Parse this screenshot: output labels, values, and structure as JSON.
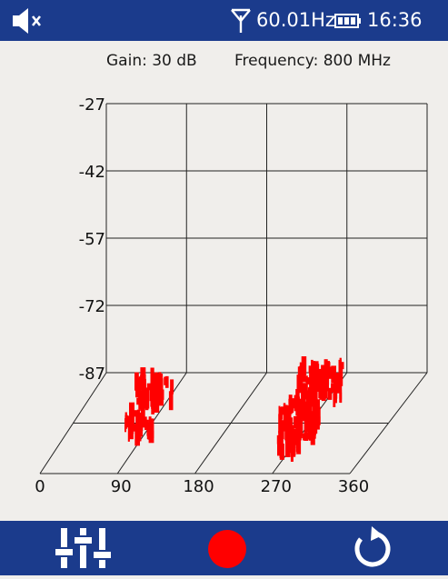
{
  "status_bar": {
    "mute_icon": "speaker-muted-icon",
    "antenna_icon": "antenna-icon",
    "signal_frequency": "60.01Hz",
    "battery_icon": "battery-icon",
    "time": "16:36"
  },
  "info": {
    "gain": "Gain: 30 dB",
    "frequency": "Frequency: 800 MHz"
  },
  "chart_data": {
    "type": "scatter",
    "y_ticks": [
      "-27",
      "-42",
      "-57",
      "-72",
      "-87"
    ],
    "x_ticks": [
      "0",
      "90",
      "180",
      "270",
      "360"
    ],
    "ylim": [
      -87,
      -27
    ],
    "xlim": [
      0,
      360
    ],
    "grid": true,
    "series_color": "#ff0000"
  },
  "bottom_bar": {
    "settings_icon": "sliders-icon",
    "record_icon": "record-icon",
    "reset_icon": "refresh-icon"
  },
  "colors": {
    "bar": "#1b3b8c",
    "background": "#f0eeeb",
    "record": "#ff0000"
  }
}
